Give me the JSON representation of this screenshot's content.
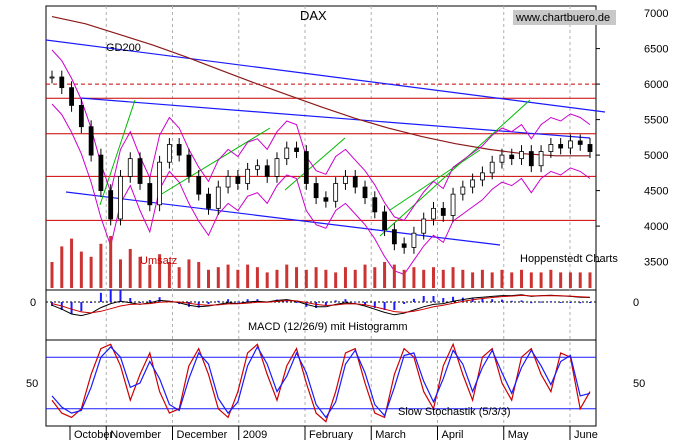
{
  "chart_data": {
    "type": "candlestick",
    "title": "DAX",
    "source": "www.chartbuero.de",
    "credit": "Hoppenstedt Charts",
    "price_axis": {
      "ylim": [
        3100,
        7100
      ],
      "ticks": [
        3500,
        4000,
        4500,
        5000,
        5500,
        6000,
        6500,
        7000
      ],
      "tick_labels": [
        "3500",
        "4000",
        "4500",
        "5000",
        "5500",
        "6000",
        "6500",
        "7000"
      ]
    },
    "months": [
      "October",
      "November",
      "December",
      "2009",
      "February",
      "March",
      "April",
      "May",
      "June"
    ],
    "gd200": {
      "label": "GD200",
      "values": [
        6950,
        6850,
        6700,
        6550,
        6380,
        6200,
        6020,
        5850,
        5680,
        5520,
        5380,
        5260,
        5160,
        5080,
        5020,
        4990,
        4990
      ]
    },
    "horizontal_levels": [
      5800,
      5300,
      4700,
      4080
    ],
    "dashed_level": 6000,
    "price_close": [
      6100,
      5950,
      5700,
      5400,
      5000,
      4500,
      4100,
      4700,
      4950,
      4600,
      4300,
      4900,
      5150,
      5000,
      4700,
      4450,
      4250,
      4550,
      4700,
      4600,
      4800,
      4850,
      4700,
      4950,
      5100,
      5050,
      4600,
      4400,
      4350,
      4600,
      4700,
      4550,
      4400,
      4200,
      3950,
      3750,
      3700,
      3900,
      4100,
      4250,
      4150,
      4450,
      4550,
      4650,
      4750,
      4900,
      5000,
      4950,
      5050,
      4850,
      5050,
      5150,
      5100,
      5200,
      5150,
      5050
    ],
    "volume": {
      "label": "Umsatz",
      "values": [
        0.5,
        0.8,
        0.95,
        0.7,
        0.6,
        0.85,
        1.0,
        0.55,
        0.75,
        0.6,
        0.45,
        0.65,
        0.5,
        0.4,
        0.55,
        0.5,
        0.35,
        0.4,
        0.45,
        0.35,
        0.45,
        0.4,
        0.3,
        0.35,
        0.45,
        0.4,
        0.35,
        0.4,
        0.35,
        0.3,
        0.4,
        0.35,
        0.45,
        0.4,
        0.5,
        0.45,
        0.35,
        0.4,
        0.35,
        0.4,
        0.35,
        0.4,
        0.35,
        0.3,
        0.35,
        0.3,
        0.35,
        0.3,
        0.35,
        0.3,
        0.3,
        0.35,
        0.3,
        0.3,
        0.3,
        0.3
      ]
    },
    "macd": {
      "label": "MACD (12/26/9) mit Histogramm",
      "zero_label": "0",
      "macd": [
        -0.2,
        -0.45,
        -0.75,
        -0.85,
        -0.7,
        -0.35,
        -0.1,
        0.05,
        -0.05,
        -0.15,
        -0.05,
        0.1,
        0.05,
        -0.05,
        -0.2,
        -0.3,
        -0.25,
        -0.15,
        -0.05,
        -0.1,
        0.0,
        0.05,
        0.0,
        0.1,
        0.15,
        0.05,
        -0.15,
        -0.3,
        -0.3,
        -0.15,
        -0.05,
        -0.1,
        -0.25,
        -0.45,
        -0.65,
        -0.8,
        -0.7,
        -0.5,
        -0.3,
        -0.15,
        -0.1,
        0.05,
        0.15,
        0.25,
        0.3,
        0.35,
        0.4,
        0.4,
        0.45,
        0.35,
        0.4,
        0.42,
        0.38,
        0.35,
        0.3,
        0.28
      ],
      "signal": [
        -0.1,
        -0.25,
        -0.45,
        -0.62,
        -0.68,
        -0.58,
        -0.42,
        -0.25,
        -0.15,
        -0.13,
        -0.1,
        -0.02,
        0.02,
        0.0,
        -0.08,
        -0.16,
        -0.2,
        -0.18,
        -0.12,
        -0.11,
        -0.07,
        -0.02,
        -0.01,
        0.04,
        0.09,
        0.07,
        -0.03,
        -0.15,
        -0.22,
        -0.19,
        -0.12,
        -0.11,
        -0.17,
        -0.3,
        -0.45,
        -0.6,
        -0.65,
        -0.58,
        -0.45,
        -0.3,
        -0.2,
        -0.08,
        0.04,
        0.14,
        0.22,
        0.28,
        0.34,
        0.37,
        0.41,
        0.38,
        0.39,
        0.4,
        0.39,
        0.37,
        0.33,
        0.3
      ]
    },
    "stochastic": {
      "label": "Slow Stochastik (5/3/3)",
      "ticks": [
        50
      ],
      "tick_labels": [
        "50"
      ],
      "levels": [
        80,
        20
      ],
      "k": [
        30,
        15,
        10,
        20,
        60,
        90,
        95,
        70,
        30,
        60,
        85,
        40,
        15,
        20,
        70,
        90,
        60,
        20,
        10,
        40,
        85,
        95,
        60,
        30,
        70,
        90,
        50,
        15,
        5,
        40,
        85,
        90,
        50,
        15,
        10,
        60,
        90,
        80,
        40,
        20,
        70,
        95,
        60,
        30,
        80,
        90,
        50,
        30,
        80,
        90,
        60,
        40,
        85,
        80,
        20,
        40
      ],
      "d": [
        35,
        22,
        15,
        18,
        45,
        80,
        92,
        80,
        45,
        50,
        75,
        55,
        25,
        18,
        55,
        85,
        72,
        32,
        15,
        28,
        70,
        92,
        72,
        40,
        58,
        85,
        62,
        25,
        10,
        28,
        72,
        88,
        62,
        25,
        12,
        45,
        82,
        85,
        52,
        28,
        55,
        88,
        72,
        40,
        68,
        88,
        62,
        38,
        68,
        88,
        70,
        48,
        75,
        82,
        35,
        38
      ]
    }
  }
}
